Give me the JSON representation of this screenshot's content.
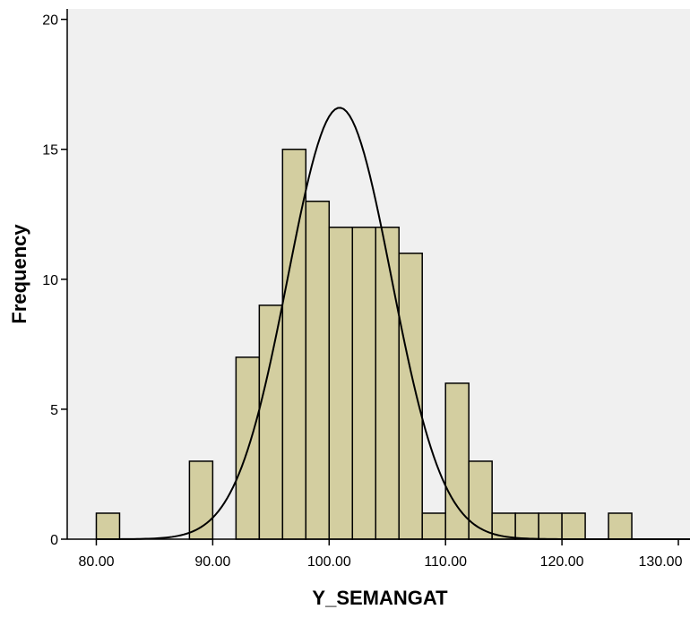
{
  "chart_data": {
    "type": "bar",
    "subtype": "histogram",
    "title": "",
    "xlabel": "Y_SEMANGAT",
    "ylabel": "Frequency",
    "xlim": [
      77.5,
      131.0
    ],
    "ylim": [
      0,
      20.4
    ],
    "x_ticks": [
      80,
      90,
      100,
      110,
      120,
      130
    ],
    "x_tick_labels": [
      "80.00",
      "90.00",
      "100.00",
      "110.00",
      "120.00",
      "130.00"
    ],
    "y_ticks": [
      0,
      5,
      10,
      15,
      20
    ],
    "y_tick_labels": [
      "0",
      "5",
      "10",
      "15",
      "20"
    ],
    "bin_width": 2,
    "bins": [
      {
        "start": 80,
        "end": 82,
        "count": 1
      },
      {
        "start": 88,
        "end": 90,
        "count": 3
      },
      {
        "start": 92,
        "end": 94,
        "count": 7
      },
      {
        "start": 94,
        "end": 96,
        "count": 9
      },
      {
        "start": 96,
        "end": 98,
        "count": 15
      },
      {
        "start": 98,
        "end": 100,
        "count": 13
      },
      {
        "start": 100,
        "end": 102,
        "count": 12
      },
      {
        "start": 102,
        "end": 104,
        "count": 12
      },
      {
        "start": 104,
        "end": 106,
        "count": 12
      },
      {
        "start": 106,
        "end": 108,
        "count": 11
      },
      {
        "start": 108,
        "end": 110,
        "count": 1
      },
      {
        "start": 110,
        "end": 112,
        "count": 6
      },
      {
        "start": 112,
        "end": 114,
        "count": 3
      },
      {
        "start": 114,
        "end": 116,
        "count": 1
      },
      {
        "start": 116,
        "end": 118,
        "count": 1
      },
      {
        "start": 118,
        "end": 120,
        "count": 1
      },
      {
        "start": 120,
        "end": 122,
        "count": 1
      },
      {
        "start": 124,
        "end": 126,
        "count": 1
      }
    ],
    "normal_curve": {
      "mean": 100.9,
      "sd": 4.45,
      "peak": 16.6
    },
    "grid": false,
    "legend": "none",
    "colors": {
      "bar_fill": "#d3cea0",
      "bar_stroke": "#000000",
      "plot_background": "#f0f0f0",
      "curve": "#000000"
    }
  }
}
